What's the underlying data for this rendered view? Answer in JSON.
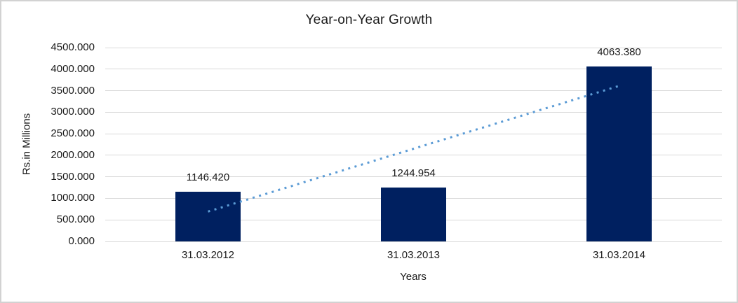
{
  "chart_data": {
    "type": "bar",
    "title": "Year-on-Year Growth",
    "xlabel": "Years",
    "ylabel": "Rs.in Millions",
    "categories": [
      "31.03.2012",
      "31.03.2013",
      "31.03.2014"
    ],
    "values": [
      1146.42,
      1244.954,
      4063.38
    ],
    "value_labels": [
      "1146.420",
      "1244.954",
      "4063.380"
    ],
    "ylim": [
      0,
      4500
    ],
    "ytick_step": 500,
    "ytick_labels": [
      "0.000",
      "500.000",
      "1000.000",
      "1500.000",
      "2000.000",
      "2500.000",
      "3000.000",
      "3500.000",
      "4000.000",
      "4500.000"
    ],
    "grid": true,
    "legend": false,
    "bar_color": "#002060",
    "gridline_color": "#d9d9d9",
    "text_color": "#1a1a1a",
    "trendline": {
      "kind": "linear",
      "style": "dotted",
      "color": "#5b9bd5",
      "start_value": 693,
      "end_value": 3610
    }
  }
}
